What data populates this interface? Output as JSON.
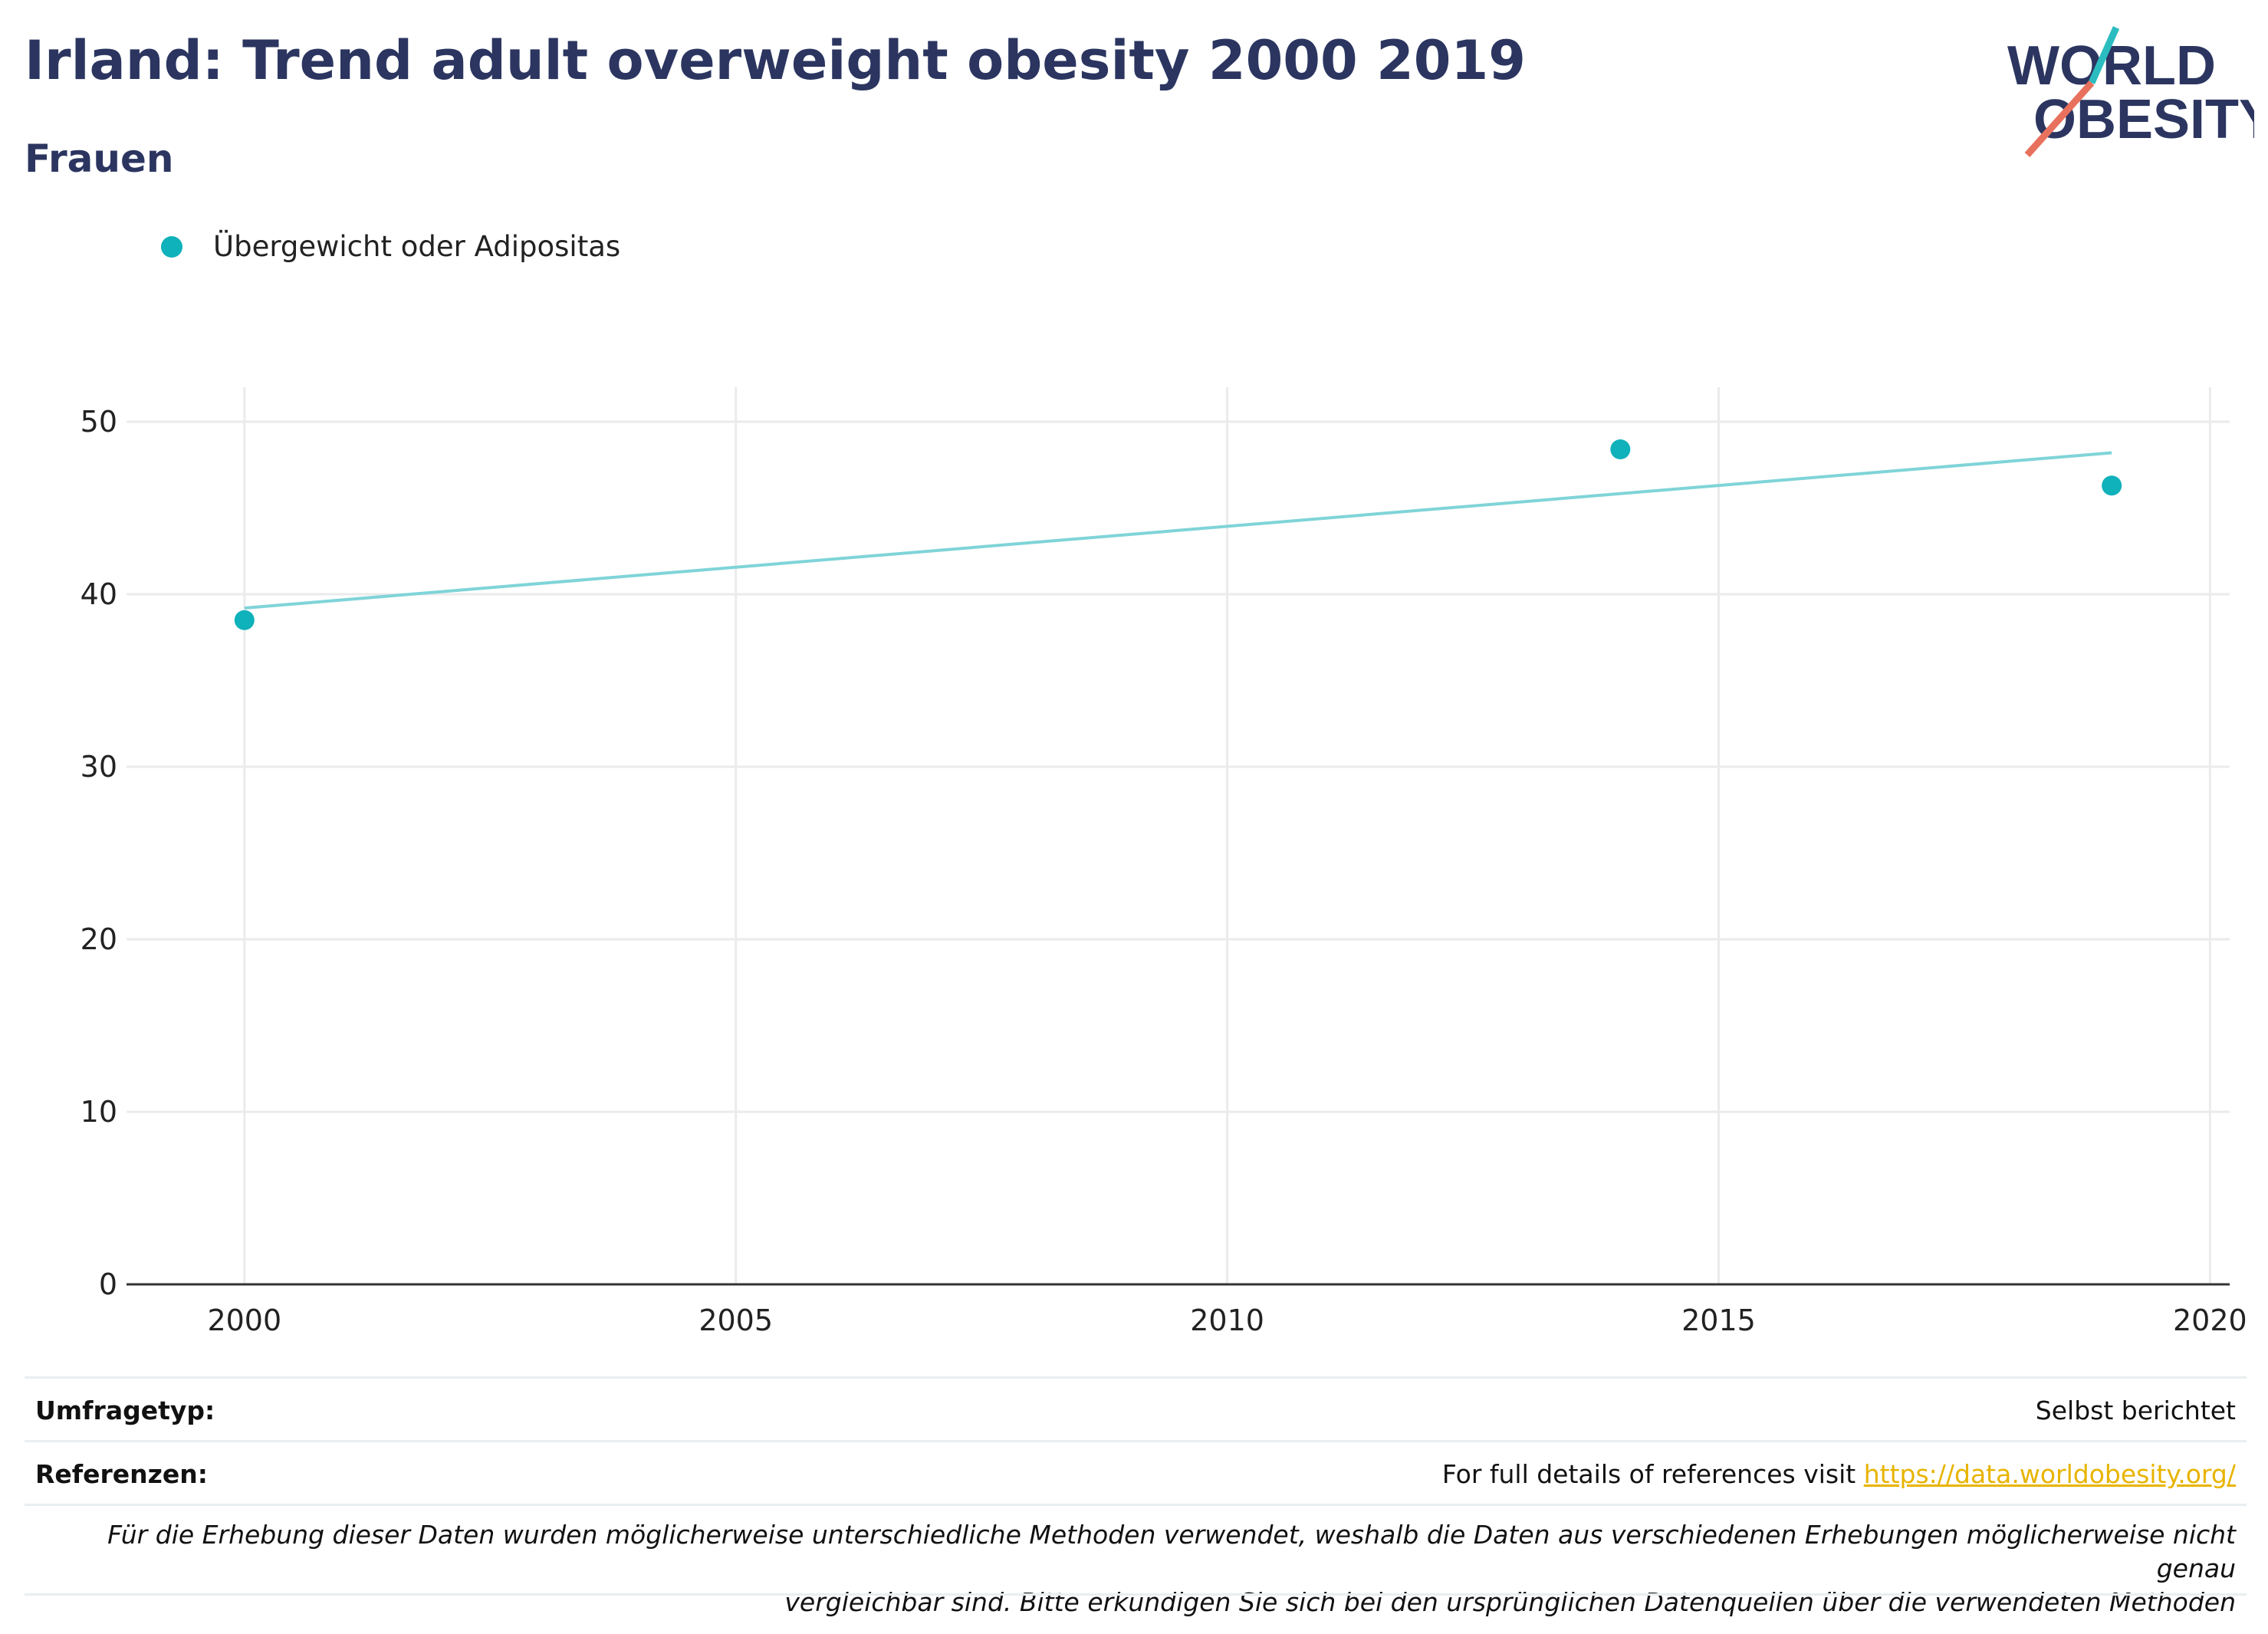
{
  "header": {
    "title": "Irland: Trend adult overweight obesity 2000 2019",
    "subtitle": "Frauen"
  },
  "logo": {
    "line1": "WORLD",
    "line2": "OBESITY",
    "slash_top_color": "#2bbcc0",
    "slash_bottom_color": "#e8715e",
    "text_color": "#2b3560"
  },
  "legend": {
    "label": "Übergewicht oder Adipositas",
    "color": "#0fb1ba"
  },
  "chart_data": {
    "type": "scatter",
    "series": [
      {
        "name": "Übergewicht oder Adipositas",
        "color": "#0fb1ba",
        "x": [
          2000,
          2014,
          2019
        ],
        "y": [
          38.5,
          48.4,
          46.3
        ]
      }
    ],
    "trendline": {
      "color": "#7fd4d8",
      "x": [
        2000,
        2019
      ],
      "y": [
        39.2,
        48.2
      ]
    },
    "xlim": [
      1998.8,
      2020.2
    ],
    "ylim": [
      0,
      52
    ],
    "xticks": [
      2000,
      2005,
      2010,
      2015,
      2020
    ],
    "yticks": [
      0,
      10,
      20,
      30,
      40,
      50
    ],
    "grid": true,
    "legend_position": "top-left"
  },
  "meta": {
    "survey_label": "Umfragetyp:",
    "survey_value": "Selbst berichtet",
    "references_label": "Referenzen:",
    "references_text": "For full details of references visit ",
    "references_link": "https://data.worldobesity.org/",
    "footnote_line1": "Für die Erhebung dieser Daten wurden möglicherweise unterschiedliche Methoden verwendet, weshalb die Daten aus verschiedenen Erhebungen möglicherweise nicht genau",
    "footnote_line2": "vergleichbar sind. Bitte erkundigen Sie sich bei den ursprünglichen Datenquellen über die verwendeten Methoden"
  }
}
